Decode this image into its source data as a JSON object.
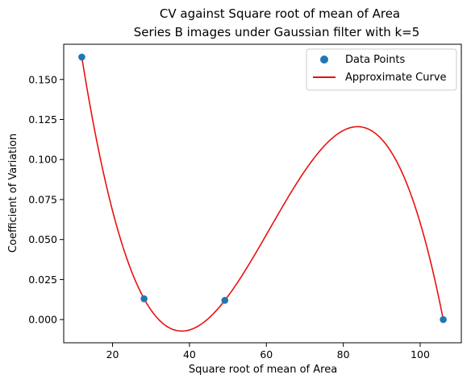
{
  "chart_data": {
    "type": "scatter",
    "title": "CV against Square root of mean of Area",
    "subtitle": "Series B images under Gaussian filter with k=5",
    "xlabel": "Square root of mean of Area",
    "ylabel": "Coefficient of Variation",
    "xlim": [
      7.3,
      110.7
    ],
    "ylim": [
      -0.0145,
      0.172
    ],
    "xticks": [
      20,
      40,
      60,
      80,
      100
    ],
    "yticks": [
      0.0,
      0.025,
      0.05,
      0.075,
      0.1,
      0.125,
      0.15
    ],
    "ytick_labels": [
      "0.000",
      "0.025",
      "0.050",
      "0.075",
      "0.100",
      "0.125",
      "0.150"
    ],
    "grid": false,
    "legend_position": "top-right",
    "series": [
      {
        "name": "Data Points",
        "kind": "scatter",
        "color": "#1f77b4",
        "points": [
          {
            "x": 12.0,
            "y": 0.164
          },
          {
            "x": 28.2,
            "y": 0.013
          },
          {
            "x": 49.2,
            "y": 0.012
          },
          {
            "x": 106.0,
            "y": 0.0
          }
        ]
      },
      {
        "name": "Approximate Curve",
        "kind": "line",
        "color": "#e8110f",
        "x_range": [
          12.0,
          106.0
        ]
      }
    ]
  }
}
